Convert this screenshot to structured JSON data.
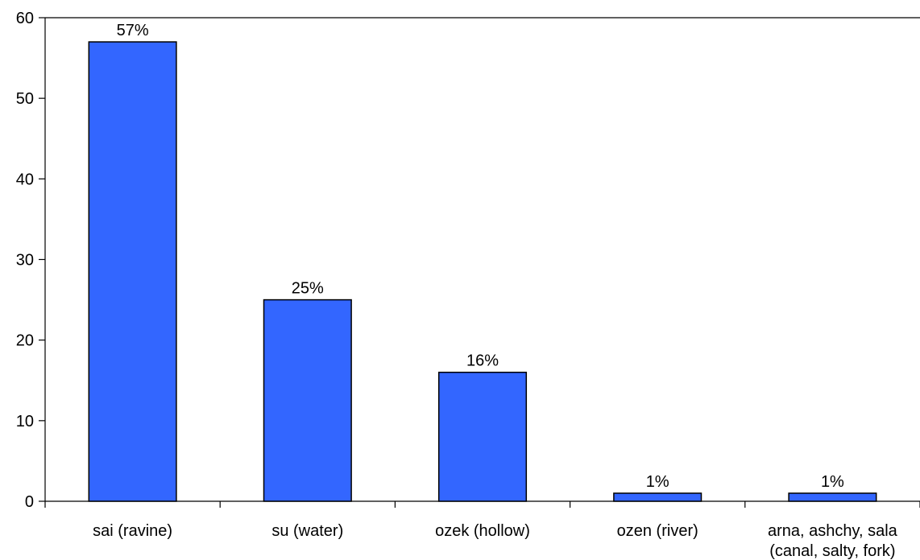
{
  "chart_data": {
    "type": "bar",
    "categories": [
      [
        "sai (ravine)"
      ],
      [
        "su (water)"
      ],
      [
        "ozek (hollow)"
      ],
      [
        "ozen (river)"
      ],
      [
        "arna, ashchy, sala",
        "(canal, salty, fork)"
      ]
    ],
    "values": [
      57,
      25,
      16,
      1,
      1
    ],
    "data_labels": [
      "57%",
      "25%",
      "16%",
      "1%",
      "1%"
    ],
    "title": "",
    "xlabel": "",
    "ylabel": "",
    "ylim": [
      0,
      60
    ],
    "yticks": [
      0,
      10,
      20,
      30,
      40,
      50,
      60
    ],
    "grid": false,
    "legend": "none",
    "colors": {
      "bar_fill": "#3366FF",
      "bar_stroke": "#000000",
      "axis": "#000000"
    }
  }
}
